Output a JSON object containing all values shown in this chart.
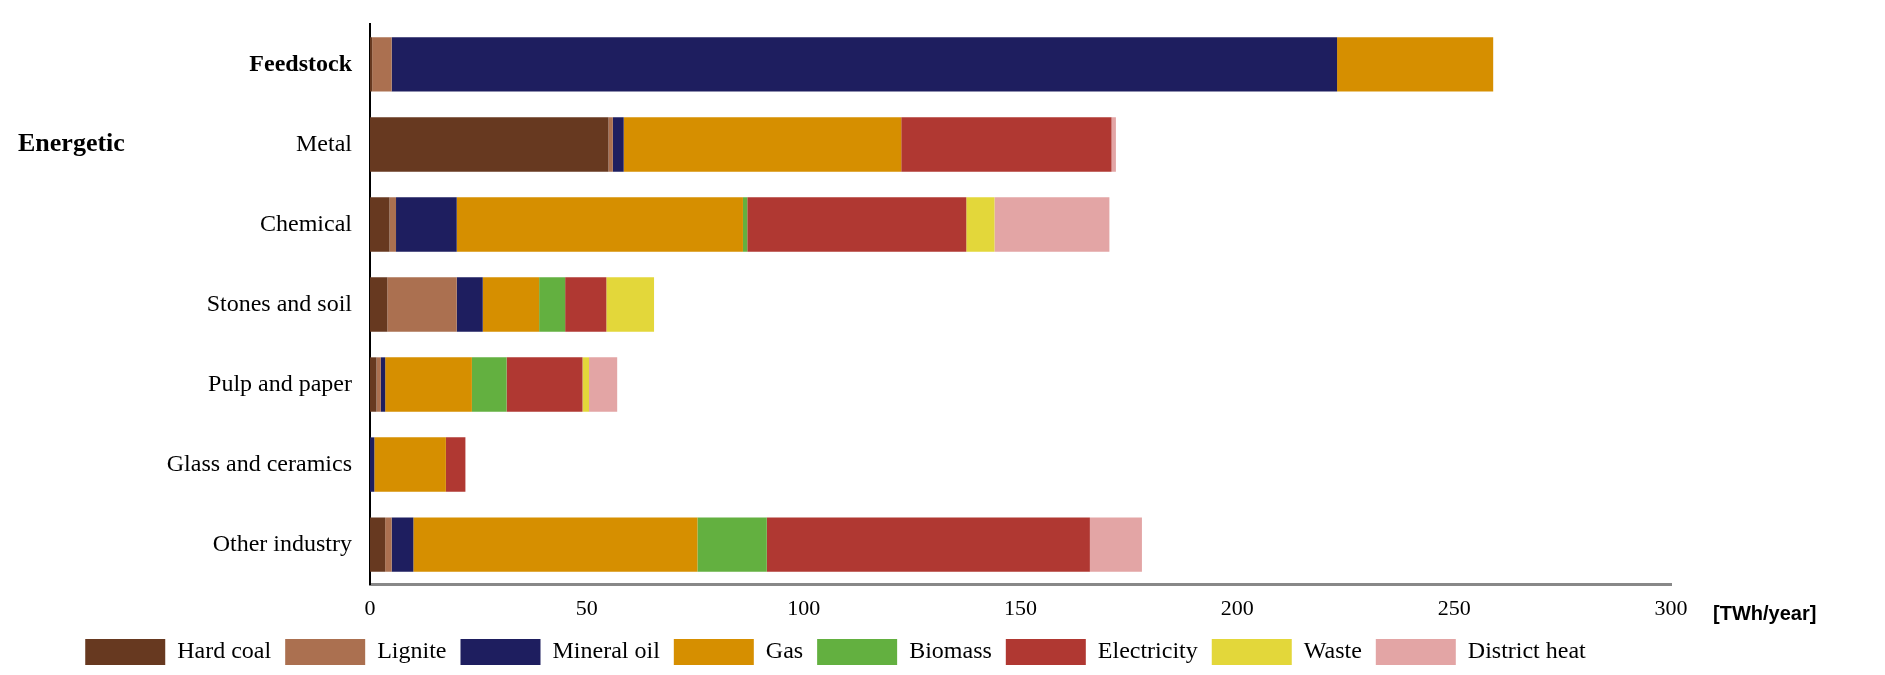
{
  "chart_data": {
    "type": "bar",
    "orientation": "horizontal",
    "stacked": true,
    "categories": [
      "Feedstock",
      "Metal",
      "Chemical",
      "Stones and soil",
      "Pulp and paper",
      "Glass and ceramics",
      "Other industry"
    ],
    "series": [
      {
        "name": "Hard coal",
        "color": "#673920",
        "values": [
          0.5,
          55,
          4.5,
          4,
          1.5,
          0,
          3.5
        ]
      },
      {
        "name": "Lignite",
        "color": "#ab7050",
        "values": [
          4.5,
          1,
          1.5,
          16,
          1,
          0,
          1.5
        ]
      },
      {
        "name": "Mineral oil",
        "color": "#1e1e5f",
        "values": [
          218,
          2.5,
          14,
          6,
          1,
          1,
          5
        ]
      },
      {
        "name": "Gas",
        "color": "#d68f00",
        "values": [
          36,
          64,
          66,
          13,
          20,
          16.5,
          65.5
        ]
      },
      {
        "name": "Biomass",
        "color": "#63b040",
        "values": [
          0,
          0,
          1,
          6,
          8,
          0,
          16
        ]
      },
      {
        "name": "Electricity",
        "color": "#b03832",
        "values": [
          0,
          48.5,
          50.5,
          9.5,
          17.5,
          4.5,
          74.5
        ]
      },
      {
        "name": "Waste",
        "color": "#e3d73a",
        "values": [
          0,
          0,
          6.5,
          11,
          1.5,
          0,
          0
        ]
      },
      {
        "name": "District heat",
        "color": "#e3a5a5",
        "values": [
          0,
          1,
          26.5,
          0,
          6.5,
          0,
          12
        ]
      }
    ],
    "xlim": [
      0,
      300
    ],
    "xticks": [
      0,
      50,
      100,
      150,
      200,
      250,
      300
    ],
    "xlabel": "[TWh/year]",
    "annotations": [
      "Energetic"
    ],
    "grid": false,
    "legend": "bottom"
  }
}
